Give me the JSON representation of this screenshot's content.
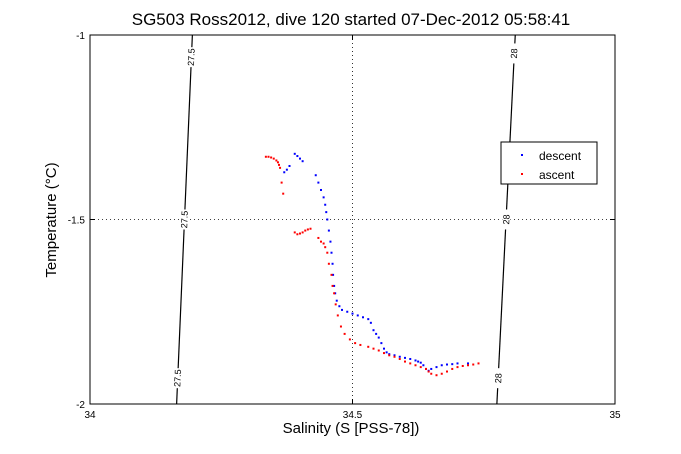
{
  "chart_data": {
    "type": "scatter",
    "title": "SG503 Ross2012, dive 120 started 07-Dec-2012 05:58:41",
    "xlabel": "Salinity (S [PSS-78])",
    "ylabel": "Temperature (°C)",
    "xlim": [
      34,
      35
    ],
    "ylim": [
      -2,
      -1
    ],
    "xticks": [
      34,
      34.5,
      35
    ],
    "yticks": [
      -2,
      -1.5,
      -1
    ],
    "xtick_labels": [
      "34",
      "34.5",
      "35"
    ],
    "ytick_labels": [
      "-2",
      "-1.5",
      "-1"
    ],
    "grid": true,
    "legend_position": "right",
    "contours": [
      {
        "label": "27.5",
        "points": [
          [
            34.195,
            -1.0
          ],
          [
            34.165,
            -2.0
          ]
        ],
        "label_positions": [
          [
            34.193,
            -1.06
          ],
          [
            34.18,
            -1.5
          ],
          [
            34.167,
            -1.93
          ]
        ]
      },
      {
        "label": "28",
        "points": [
          [
            34.81,
            -1.0
          ],
          [
            34.775,
            -2.0
          ]
        ],
        "label_positions": [
          [
            34.808,
            -1.05
          ],
          [
            34.793,
            -1.5
          ],
          [
            34.778,
            -1.93
          ]
        ]
      }
    ],
    "series": [
      {
        "name": "descent",
        "color": "#0000ff",
        "points": [
          [
            34.39,
            -1.322
          ],
          [
            34.395,
            -1.328
          ],
          [
            34.4,
            -1.335
          ],
          [
            34.405,
            -1.342
          ],
          [
            34.38,
            -1.355
          ],
          [
            34.375,
            -1.365
          ],
          [
            34.37,
            -1.372
          ],
          [
            34.43,
            -1.38
          ],
          [
            34.435,
            -1.4
          ],
          [
            34.44,
            -1.42
          ],
          [
            34.445,
            -1.44
          ],
          [
            34.448,
            -1.46
          ],
          [
            34.45,
            -1.48
          ],
          [
            34.452,
            -1.5
          ],
          [
            34.455,
            -1.53
          ],
          [
            34.458,
            -1.56
          ],
          [
            34.46,
            -1.59
          ],
          [
            34.462,
            -1.62
          ],
          [
            34.463,
            -1.65
          ],
          [
            34.465,
            -1.68
          ],
          [
            34.467,
            -1.7
          ],
          [
            34.47,
            -1.72
          ],
          [
            34.475,
            -1.735
          ],
          [
            34.48,
            -1.745
          ],
          [
            34.49,
            -1.75
          ],
          [
            34.5,
            -1.755
          ],
          [
            34.51,
            -1.76
          ],
          [
            34.52,
            -1.765
          ],
          [
            34.53,
            -1.77
          ],
          [
            34.535,
            -1.78
          ],
          [
            34.54,
            -1.8
          ],
          [
            34.545,
            -1.81
          ],
          [
            34.55,
            -1.82
          ],
          [
            34.555,
            -1.835
          ],
          [
            34.56,
            -1.85
          ],
          [
            34.565,
            -1.86
          ],
          [
            34.57,
            -1.865
          ],
          [
            34.58,
            -1.868
          ],
          [
            34.59,
            -1.872
          ],
          [
            34.6,
            -1.875
          ],
          [
            34.61,
            -1.878
          ],
          [
            34.62,
            -1.882
          ],
          [
            34.625,
            -1.885
          ],
          [
            34.63,
            -1.888
          ],
          [
            34.635,
            -1.895
          ],
          [
            34.64,
            -1.905
          ],
          [
            34.645,
            -1.91
          ],
          [
            34.65,
            -1.905
          ],
          [
            34.66,
            -1.9
          ],
          [
            34.67,
            -1.895
          ],
          [
            34.68,
            -1.893
          ],
          [
            34.69,
            -1.892
          ],
          [
            34.7,
            -1.89
          ],
          [
            34.72,
            -1.89
          ]
        ]
      },
      {
        "name": "ascent",
        "color": "#ff0000",
        "points": [
          [
            34.335,
            -1.33
          ],
          [
            34.34,
            -1.33
          ],
          [
            34.345,
            -1.332
          ],
          [
            34.35,
            -1.335
          ],
          [
            34.355,
            -1.34
          ],
          [
            34.358,
            -1.345
          ],
          [
            34.36,
            -1.352
          ],
          [
            34.362,
            -1.36
          ],
          [
            34.365,
            -1.4
          ],
          [
            34.368,
            -1.43
          ],
          [
            34.39,
            -1.535
          ],
          [
            34.395,
            -1.54
          ],
          [
            34.4,
            -1.538
          ],
          [
            34.405,
            -1.535
          ],
          [
            34.41,
            -1.53
          ],
          [
            34.415,
            -1.527
          ],
          [
            34.42,
            -1.525
          ],
          [
            34.435,
            -1.55
          ],
          [
            34.44,
            -1.56
          ],
          [
            34.445,
            -1.565
          ],
          [
            34.448,
            -1.575
          ],
          [
            34.452,
            -1.59
          ],
          [
            34.455,
            -1.62
          ],
          [
            34.46,
            -1.65
          ],
          [
            34.462,
            -1.68
          ],
          [
            34.465,
            -1.7
          ],
          [
            34.468,
            -1.73
          ],
          [
            34.472,
            -1.76
          ],
          [
            34.478,
            -1.79
          ],
          [
            34.485,
            -1.81
          ],
          [
            34.495,
            -1.825
          ],
          [
            34.505,
            -1.835
          ],
          [
            34.515,
            -1.84
          ],
          [
            34.53,
            -1.845
          ],
          [
            34.54,
            -1.85
          ],
          [
            34.55,
            -1.855
          ],
          [
            34.56,
            -1.862
          ],
          [
            34.57,
            -1.868
          ],
          [
            34.58,
            -1.872
          ],
          [
            34.59,
            -1.878
          ],
          [
            34.6,
            -1.885
          ],
          [
            34.61,
            -1.89
          ],
          [
            34.62,
            -1.895
          ],
          [
            34.63,
            -1.9
          ],
          [
            34.64,
            -1.905
          ],
          [
            34.645,
            -1.912
          ],
          [
            34.65,
            -1.918
          ],
          [
            34.66,
            -1.922
          ],
          [
            34.67,
            -1.918
          ],
          [
            34.68,
            -1.912
          ],
          [
            34.69,
            -1.905
          ],
          [
            34.7,
            -1.9
          ],
          [
            34.71,
            -1.897
          ],
          [
            34.72,
            -1.895
          ],
          [
            34.73,
            -1.893
          ],
          [
            34.74,
            -1.89
          ]
        ]
      }
    ]
  }
}
